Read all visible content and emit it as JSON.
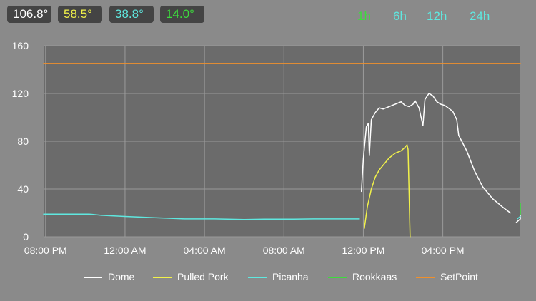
{
  "readouts": [
    {
      "label": "106.8°",
      "color": "#ffffff"
    },
    {
      "label": "58.5°",
      "color": "#f2f24a"
    },
    {
      "label": "38.8°",
      "color": "#5fe8e0"
    },
    {
      "label": "14.0°",
      "color": "#3ddc3d"
    }
  ],
  "ranges": [
    {
      "label": "1h",
      "color": "#3ddc3d",
      "active": true
    },
    {
      "label": "6h",
      "color": "#5fe8e0"
    },
    {
      "label": "12h",
      "color": "#5fe8e0"
    },
    {
      "label": "24h",
      "color": "#5fe8e0"
    }
  ],
  "chart_data": {
    "type": "line",
    "y_ticks": [
      "0",
      "40",
      "80",
      "120",
      "160"
    ],
    "ylim": [
      0,
      160
    ],
    "x_ticks": [
      "08:00 PM",
      "12:00 AM",
      "04:00 AM",
      "08:00 AM",
      "12:00 PM",
      "04:00 PM"
    ],
    "x_tick_hours": [
      0,
      4,
      8,
      12,
      16,
      20
    ],
    "xlim_hours": [
      -0.1,
      23.9
    ],
    "grid": true,
    "legend": "bottom",
    "series": [
      {
        "name": "Dome",
        "color": "#ffffff",
        "points": [
          [
            15.9,
            38
          ],
          [
            16.0,
            65
          ],
          [
            16.15,
            92
          ],
          [
            16.25,
            95
          ],
          [
            16.3,
            68
          ],
          [
            16.4,
            98
          ],
          [
            16.6,
            104
          ],
          [
            16.8,
            108
          ],
          [
            17.0,
            107
          ],
          [
            17.3,
            109
          ],
          [
            17.6,
            111
          ],
          [
            17.9,
            113
          ],
          [
            18.1,
            110
          ],
          [
            18.3,
            109
          ],
          [
            18.5,
            111
          ],
          [
            18.6,
            114
          ],
          [
            18.8,
            108
          ],
          [
            19.0,
            93
          ],
          [
            19.1,
            115
          ],
          [
            19.3,
            120
          ],
          [
            19.5,
            118
          ],
          [
            19.7,
            113
          ],
          [
            19.9,
            111
          ],
          [
            20.1,
            110
          ],
          [
            20.35,
            107
          ],
          [
            20.5,
            105
          ],
          [
            20.7,
            98
          ],
          [
            20.8,
            85
          ],
          [
            21.2,
            72
          ],
          [
            21.6,
            55
          ],
          [
            22.0,
            42
          ],
          [
            22.5,
            32
          ],
          [
            23.0,
            25
          ],
          [
            23.4,
            20
          ],
          [
            23.8,
            18
          ],
          [
            23.85,
            18
          ],
          [
            23.9,
            18
          ],
          [
            23.2,
            17
          ],
          [
            23.0,
            15
          ],
          [
            23.1,
            13
          ]
        ],
        "segments": [
          [
            [
              15.9,
              38
            ],
            [
              16.0,
              65
            ],
            [
              16.15,
              92
            ],
            [
              16.25,
              95
            ],
            [
              16.3,
              68
            ],
            [
              16.4,
              98
            ],
            [
              16.6,
              104
            ],
            [
              16.8,
              108
            ],
            [
              17.0,
              107
            ],
            [
              17.3,
              109
            ],
            [
              17.6,
              111
            ],
            [
              17.9,
              113
            ],
            [
              18.1,
              110
            ],
            [
              18.3,
              109
            ],
            [
              18.5,
              111
            ],
            [
              18.6,
              114
            ],
            [
              18.8,
              108
            ],
            [
              19.0,
              93
            ],
            [
              19.1,
              115
            ],
            [
              19.3,
              120
            ],
            [
              19.5,
              118
            ],
            [
              19.7,
              113
            ],
            [
              19.9,
              111
            ],
            [
              20.1,
              110
            ],
            [
              20.35,
              107
            ],
            [
              20.5,
              105
            ],
            [
              20.7,
              98
            ],
            [
              20.8,
              85
            ],
            [
              21.2,
              72
            ],
            [
              21.6,
              55
            ],
            [
              22.0,
              42
            ],
            [
              22.5,
              32
            ],
            [
              23.0,
              25
            ],
            [
              23.4,
              20
            ]
          ],
          [
            [
              23.7,
              12
            ],
            [
              23.9,
              15
            ],
            [
              24.3,
              17
            ],
            [
              24.6,
              17
            ],
            [
              25.1,
              18
            ]
          ]
        ]
      },
      {
        "name": "Pulled Pork",
        "color": "#f2f24a",
        "segments": [
          [
            [
              16.05,
              7
            ],
            [
              16.2,
              25
            ],
            [
              16.4,
              40
            ],
            [
              16.6,
              50
            ],
            [
              16.8,
              56
            ],
            [
              17.0,
              60
            ],
            [
              17.3,
              66
            ],
            [
              17.6,
              70
            ],
            [
              17.9,
              72
            ],
            [
              18.1,
              75
            ],
            [
              18.2,
              77
            ],
            [
              18.25,
              73
            ],
            [
              18.35,
              0
            ]
          ]
        ]
      },
      {
        "name": "Picanha",
        "color": "#5fe8e0",
        "segments": [
          [
            [
              -0.1,
              19
            ],
            [
              1,
              19
            ],
            [
              2.2,
              19
            ],
            [
              2.8,
              18
            ],
            [
              4,
              17
            ],
            [
              5.5,
              16
            ],
            [
              7,
              15
            ],
            [
              8.5,
              15
            ],
            [
              10,
              14.5
            ],
            [
              11,
              14.8
            ],
            [
              12.5,
              14.8
            ],
            [
              13.5,
              15
            ],
            [
              14.5,
              15
            ],
            [
              15.5,
              15
            ],
            [
              15.8,
              15
            ]
          ],
          [
            [
              23.75,
              15
            ],
            [
              24.0,
              17
            ],
            [
              24.3,
              17
            ],
            [
              24.9,
              17
            ]
          ]
        ]
      },
      {
        "name": "Rookkaas",
        "color": "#3ddc3d",
        "segments": [
          [
            [
              24.25,
              28
            ],
            [
              24.35,
              24
            ],
            [
              24.45,
              20
            ],
            [
              24.6,
              19
            ],
            [
              24.9,
              19
            ]
          ]
        ]
      },
      {
        "name": "SetPoint",
        "color": "#f0902c",
        "segments": [
          [
            [
              -0.1,
              145
            ],
            [
              23.9,
              145
            ]
          ]
        ]
      }
    ]
  }
}
